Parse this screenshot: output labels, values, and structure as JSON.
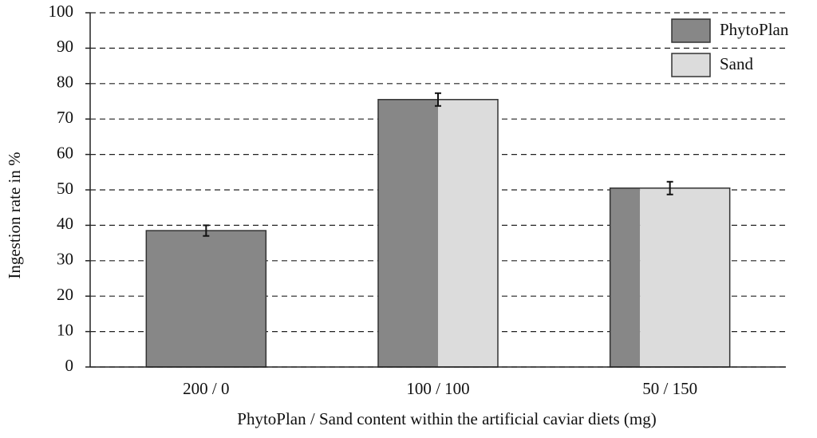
{
  "chart_data": {
    "type": "split-bar",
    "y_label": "Ingestion rate in %",
    "x_label": "PhytoPlan / Sand content within the artificial caviar diets (mg)",
    "categories": [
      "200 / 0",
      "100 / 100",
      "50 / 150"
    ],
    "values": [
      38.5,
      75.5,
      50.5
    ],
    "errors": [
      1.5,
      1.8,
      1.8
    ],
    "series": [
      {
        "name": "PhytoPlan",
        "color": "#878787",
        "content_mg": [
          200,
          100,
          50
        ]
      },
      {
        "name": "Sand",
        "color": "#dcdcdc",
        "content_mg": [
          0,
          100,
          150
        ]
      }
    ],
    "ylim": [
      0,
      100
    ],
    "yticks": [
      0,
      10,
      20,
      30,
      40,
      50,
      60,
      70,
      80,
      90,
      100
    ],
    "grid": true,
    "legend": "top-right"
  }
}
